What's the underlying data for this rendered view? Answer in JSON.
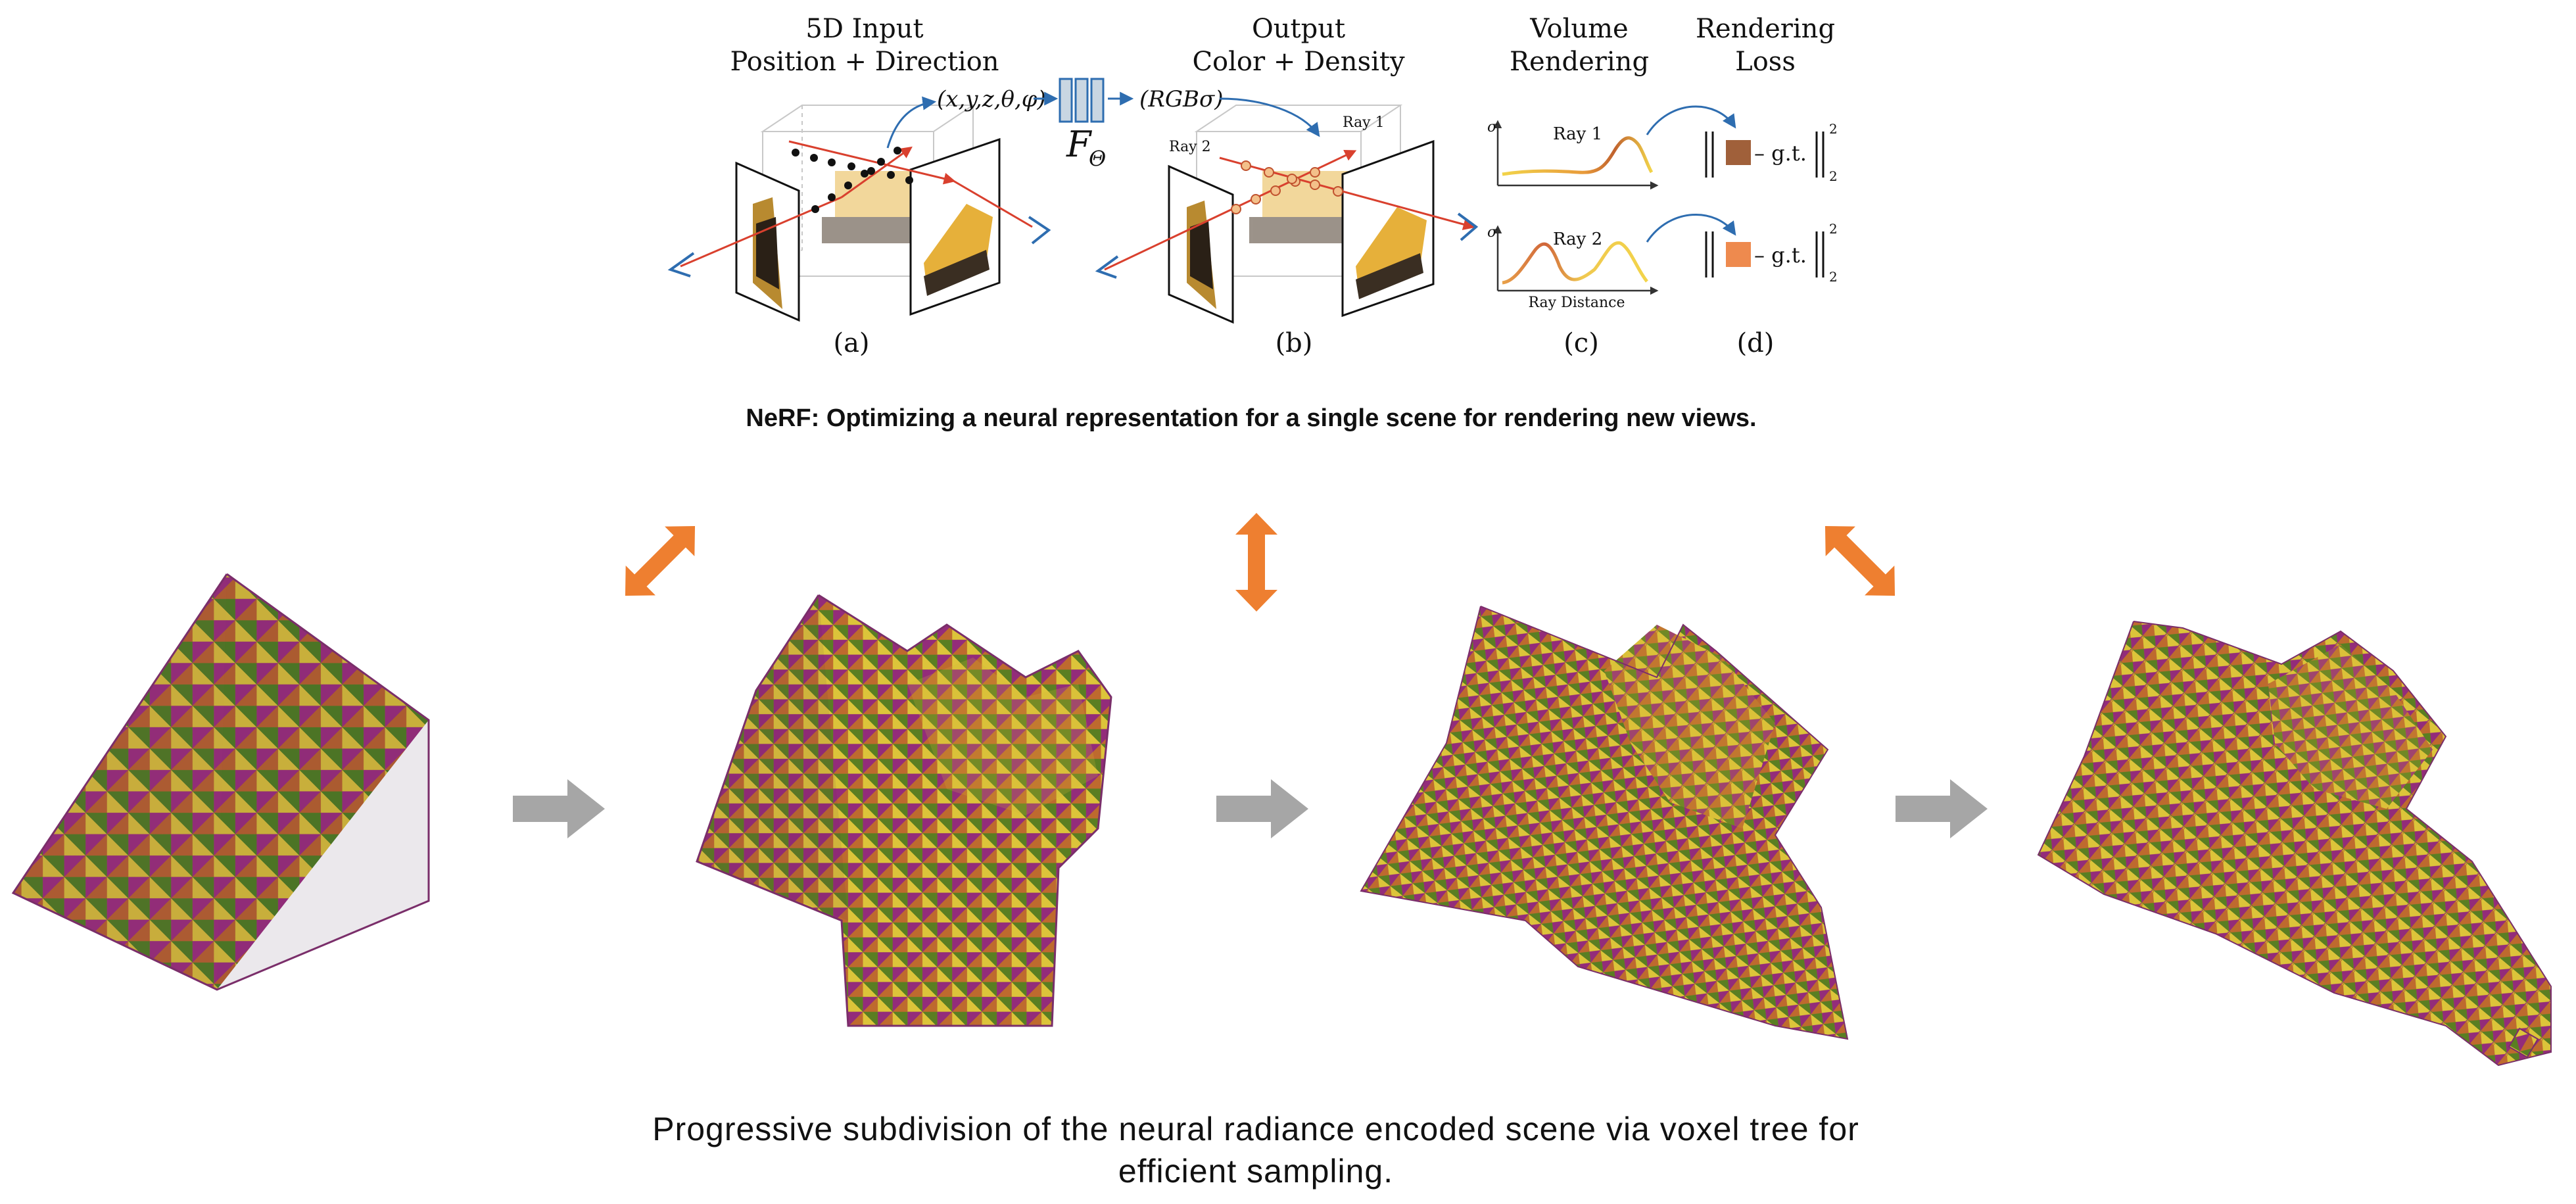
{
  "nerf": {
    "panel_a": {
      "title_line1": "5D Input",
      "title_line2": "Position + Direction",
      "coords": "(x,y,z,θ,φ)",
      "label": "(a)"
    },
    "network": {
      "label": "F",
      "subscript": "Θ"
    },
    "panel_b": {
      "title_line1": "Output",
      "title_line2": "Color + Density",
      "coords": "(RGBσ)",
      "ray1": "Ray 1",
      "ray2": "Ray 2",
      "label": "(b)"
    },
    "panel_c": {
      "title_line1": "Volume",
      "title_line2": "Rendering",
      "ray1": "Ray 1",
      "ray2": "Ray 2",
      "sigma": "σ",
      "x_axis": "Ray Distance",
      "label": "(c)"
    },
    "panel_d": {
      "title_line1": "Rendering",
      "title_line2": "Loss",
      "gt": "– g.t.",
      "sup": "2",
      "sub": "2",
      "label": "(d)",
      "color1": "#A0603A",
      "color2": "#EE8A4E"
    },
    "caption": "NeRF: Optimizing a neural representation for a single scene for rendering new views."
  },
  "subdivision": {
    "caption_line1": "Progressive subdivision of the neural radiance encoded scene via voxel tree for",
    "caption_line2": "efficient sampling.",
    "orange_arrow_color": "#EE7F30",
    "gray_arrow_color": "#A6A6A6"
  }
}
